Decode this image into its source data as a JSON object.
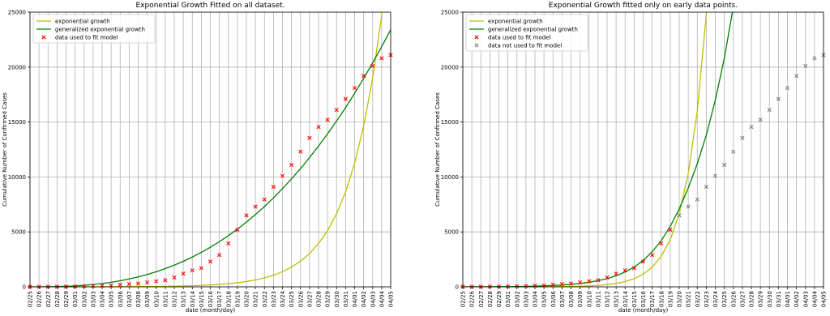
{
  "chart_data": [
    {
      "type": "line",
      "title": "Exponential Growth Fitted on all dataset.",
      "x_label": "date (month/day)",
      "y_label": "Cumulative Number of Confirmed Cases",
      "categories": [
        "02/25",
        "02/26",
        "02/27",
        "02/28",
        "02/29",
        "03/01",
        "03/02",
        "03/03",
        "03/04",
        "03/05",
        "03/06",
        "03/07",
        "03/08",
        "03/09",
        "03/10",
        "03/11",
        "03/12",
        "03/13",
        "03/14",
        "03/15",
        "03/16",
        "03/17",
        "03/18",
        "03/19",
        "03/20",
        "03/21",
        "03/22",
        "03/23",
        "03/24",
        "03/25",
        "03/26",
        "03/27",
        "03/28",
        "03/29",
        "03/30",
        "03/31",
        "04/01",
        "04/02",
        "04/03",
        "04/04",
        "04/05"
      ],
      "ylim": [
        0,
        25000
      ],
      "yticks": [
        0,
        5000,
        10000,
        15000,
        20000,
        25000
      ],
      "grid": true,
      "legend": "upper-left",
      "series": [
        {
          "name": "exponential growth",
          "color": "#bfbf00",
          "marker": "line",
          "values": [
            1,
            1,
            1,
            2,
            2,
            3,
            4,
            5,
            7,
            9,
            12,
            16,
            21,
            27,
            35,
            45,
            59,
            77,
            100,
            130,
            169,
            220,
            285,
            371,
            483,
            627,
            815,
            1060,
            1378,
            1792,
            2329,
            3028,
            3936,
            5117,
            6652,
            8648,
            11243,
            14615,
            19000,
            24700,
            32100
          ]
        },
        {
          "name": "generalized exponential growth",
          "color": "#007f00",
          "marker": "line",
          "values": [
            0,
            1,
            7,
            22,
            47,
            85,
            140,
            211,
            302,
            416,
            555,
            717,
            906,
            1125,
            1374,
            1657,
            1971,
            2323,
            2710,
            3135,
            3601,
            4111,
            4659,
            5253,
            5892,
            6578,
            7313,
            8099,
            8934,
            9823,
            10759,
            11761,
            12816,
            13925,
            15086,
            16310,
            17616,
            18968,
            20384,
            21863,
            23400
          ]
        },
        {
          "name": "data used to fit model",
          "color": "#ff0000",
          "marker": "x",
          "values": [
            10,
            15,
            20,
            25,
            30,
            40,
            60,
            80,
            100,
            120,
            200,
            250,
            300,
            400,
            500,
            600,
            850,
            1200,
            1500,
            1700,
            2300,
            2900,
            3950,
            5200,
            6500,
            7300,
            7950,
            9100,
            10100,
            11100,
            12300,
            13550,
            14550,
            15200,
            16100,
            17100,
            18100,
            19200,
            20100,
            20800,
            21100
          ]
        }
      ]
    },
    {
      "type": "line",
      "title": "Exponential Growth fitted only on early data points.",
      "x_label": "date (month/day)",
      "y_label": "Cumulative Number of Confirmed Cases",
      "categories": [
        "02/25",
        "02/26",
        "02/27",
        "02/28",
        "02/29",
        "03/01",
        "03/02",
        "03/03",
        "03/04",
        "03/05",
        "03/06",
        "03/07",
        "03/08",
        "03/09",
        "03/10",
        "03/11",
        "03/12",
        "03/13",
        "03/14",
        "03/15",
        "03/16",
        "03/17",
        "03/18",
        "03/19",
        "03/20",
        "03/21",
        "03/22",
        "03/23",
        "03/24",
        "03/25",
        "03/26",
        "03/27",
        "03/28",
        "03/29",
        "03/30",
        "03/31",
        "04/01",
        "04/02",
        "04/03",
        "04/04",
        "04/05"
      ],
      "ylim": [
        0,
        25000
      ],
      "yticks": [
        0,
        5000,
        10000,
        15000,
        20000,
        25000
      ],
      "grid": true,
      "legend": "upper-left",
      "series": [
        {
          "name": "exponential growth",
          "color": "#bfbf00",
          "marker": "line",
          "values": [
            0,
            0,
            0,
            1,
            1,
            2,
            2,
            4,
            6,
            9,
            14,
            22,
            35,
            54,
            83,
            129,
            200,
            310,
            480,
            743,
            1150,
            1790,
            2770,
            4290,
            6650,
            10300,
            16000,
            24800,
            38400,
            null,
            null,
            null,
            null,
            null,
            null,
            null,
            null,
            null,
            null,
            null,
            null
          ]
        },
        {
          "name": "generalized exponential growth",
          "color": "#007f00",
          "marker": "line",
          "values": [
            1,
            3,
            5,
            8,
            13,
            20,
            30,
            45,
            65,
            90,
            125,
            170,
            230,
            310,
            420,
            560,
            750,
            1000,
            1350,
            1800,
            2400,
            3200,
            4200,
            5500,
            7100,
            9000,
            11200,
            13800,
            17000,
            20800,
            25500,
            null,
            null,
            null,
            null,
            null,
            null,
            null,
            null,
            null,
            null
          ]
        },
        {
          "name": "data used to fit model",
          "color": "#ff0000",
          "marker": "x",
          "values": [
            10,
            15,
            20,
            25,
            30,
            40,
            60,
            80,
            100,
            120,
            200,
            250,
            300,
            400,
            500,
            600,
            850,
            1200,
            1500,
            1700,
            2300,
            2900,
            3950,
            5200,
            null,
            null,
            null,
            null,
            null,
            null,
            null,
            null,
            null,
            null,
            null,
            null,
            null,
            null,
            null,
            null,
            null
          ]
        },
        {
          "name": "data not used to fit model",
          "color": "#808080",
          "marker": "x",
          "values": [
            null,
            null,
            null,
            null,
            null,
            null,
            null,
            null,
            null,
            null,
            null,
            null,
            null,
            null,
            null,
            null,
            null,
            null,
            null,
            null,
            null,
            null,
            null,
            null,
            6500,
            7300,
            7950,
            9100,
            10100,
            11100,
            12300,
            13550,
            14550,
            15200,
            16100,
            17100,
            18100,
            19200,
            20100,
            20800,
            21100
          ]
        }
      ]
    }
  ]
}
